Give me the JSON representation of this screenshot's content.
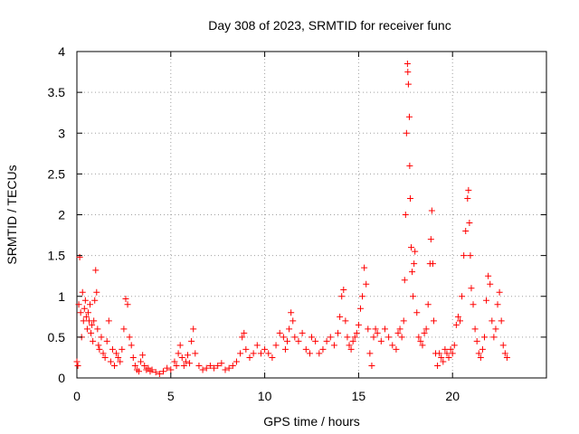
{
  "chart_data": {
    "type": "scatter",
    "title": "Day 308 of 2023, SRMTID for receiver func",
    "xlabel": "GPS time / hours",
    "ylabel": "SRMTID / TECUs",
    "xlim": [
      0,
      25
    ],
    "ylim": [
      0,
      4
    ],
    "xticks": [
      0,
      5,
      10,
      15,
      20
    ],
    "yticks": [
      0,
      0.5,
      1,
      1.5,
      2,
      2.5,
      3,
      3.5,
      4
    ],
    "xtick_labels": [
      "0",
      "5",
      "10",
      "15",
      "20"
    ],
    "ytick_labels": [
      "0",
      "0.5",
      "1",
      "1.5",
      "2",
      "2.5",
      "3",
      "3.5",
      "4"
    ],
    "grid": true,
    "marker": "+",
    "series": [
      {
        "name": "SRMTID",
        "color": "#ff0000",
        "points": [
          [
            0.0,
            0.2
          ],
          [
            0.05,
            0.15
          ],
          [
            0.1,
            0.9
          ],
          [
            0.15,
            1.48
          ],
          [
            0.2,
            0.8
          ],
          [
            0.25,
            0.5
          ],
          [
            0.3,
            1.05
          ],
          [
            0.35,
            0.7
          ],
          [
            0.4,
            0.85
          ],
          [
            0.45,
            0.95
          ],
          [
            0.5,
            0.75
          ],
          [
            0.55,
            0.6
          ],
          [
            0.6,
            0.8
          ],
          [
            0.65,
            0.7
          ],
          [
            0.7,
            0.9
          ],
          [
            0.75,
            0.55
          ],
          [
            0.8,
            0.65
          ],
          [
            0.85,
            0.45
          ],
          [
            0.9,
            0.7
          ],
          [
            0.95,
            0.95
          ],
          [
            1.0,
            1.32
          ],
          [
            1.05,
            1.05
          ],
          [
            1.1,
            0.6
          ],
          [
            1.15,
            0.4
          ],
          [
            1.2,
            0.35
          ],
          [
            1.3,
            0.5
          ],
          [
            1.4,
            0.3
          ],
          [
            1.5,
            0.25
          ],
          [
            1.6,
            0.45
          ],
          [
            1.7,
            0.7
          ],
          [
            1.8,
            0.2
          ],
          [
            1.9,
            0.35
          ],
          [
            2.0,
            0.15
          ],
          [
            2.1,
            0.3
          ],
          [
            2.2,
            0.25
          ],
          [
            2.3,
            0.2
          ],
          [
            2.4,
            0.35
          ],
          [
            2.5,
            0.6
          ],
          [
            2.6,
            0.97
          ],
          [
            2.7,
            0.9
          ],
          [
            2.8,
            0.5
          ],
          [
            2.9,
            0.4
          ],
          [
            3.0,
            0.25
          ],
          [
            3.1,
            0.15
          ],
          [
            3.2,
            0.1
          ],
          [
            3.3,
            0.08
          ],
          [
            3.4,
            0.2
          ],
          [
            3.5,
            0.28
          ],
          [
            3.6,
            0.15
          ],
          [
            3.7,
            0.1
          ],
          [
            3.8,
            0.12
          ],
          [
            3.9,
            0.08
          ],
          [
            4.0,
            0.1
          ],
          [
            4.2,
            0.07
          ],
          [
            4.4,
            0.05
          ],
          [
            4.6,
            0.08
          ],
          [
            4.8,
            0.12
          ],
          [
            5.0,
            0.1
          ],
          [
            5.2,
            0.2
          ],
          [
            5.3,
            0.15
          ],
          [
            5.4,
            0.3
          ],
          [
            5.5,
            0.4
          ],
          [
            5.6,
            0.25
          ],
          [
            5.7,
            0.15
          ],
          [
            5.8,
            0.2
          ],
          [
            5.9,
            0.28
          ],
          [
            6.0,
            0.18
          ],
          [
            6.1,
            0.45
          ],
          [
            6.2,
            0.6
          ],
          [
            6.3,
            0.3
          ],
          [
            6.5,
            0.15
          ],
          [
            6.7,
            0.1
          ],
          [
            6.9,
            0.12
          ],
          [
            7.1,
            0.15
          ],
          [
            7.3,
            0.12
          ],
          [
            7.5,
            0.15
          ],
          [
            7.7,
            0.18
          ],
          [
            7.9,
            0.1
          ],
          [
            8.1,
            0.12
          ],
          [
            8.3,
            0.15
          ],
          [
            8.5,
            0.2
          ],
          [
            8.7,
            0.3
          ],
          [
            8.8,
            0.5
          ],
          [
            8.9,
            0.55
          ],
          [
            9.0,
            0.35
          ],
          [
            9.2,
            0.25
          ],
          [
            9.4,
            0.3
          ],
          [
            9.6,
            0.4
          ],
          [
            9.8,
            0.3
          ],
          [
            10.0,
            0.35
          ],
          [
            10.2,
            0.3
          ],
          [
            10.4,
            0.25
          ],
          [
            10.6,
            0.4
          ],
          [
            10.8,
            0.55
          ],
          [
            11.0,
            0.5
          ],
          [
            11.1,
            0.35
          ],
          [
            11.2,
            0.45
          ],
          [
            11.3,
            0.6
          ],
          [
            11.4,
            0.8
          ],
          [
            11.5,
            0.7
          ],
          [
            11.6,
            0.5
          ],
          [
            11.8,
            0.45
          ],
          [
            12.0,
            0.55
          ],
          [
            12.2,
            0.35
          ],
          [
            12.4,
            0.3
          ],
          [
            12.5,
            0.5
          ],
          [
            12.7,
            0.45
          ],
          [
            12.9,
            0.3
          ],
          [
            13.1,
            0.35
          ],
          [
            13.3,
            0.45
          ],
          [
            13.5,
            0.5
          ],
          [
            13.7,
            0.4
          ],
          [
            13.9,
            0.55
          ],
          [
            14.0,
            0.75
          ],
          [
            14.1,
            1.0
          ],
          [
            14.2,
            1.08
          ],
          [
            14.3,
            0.7
          ],
          [
            14.4,
            0.5
          ],
          [
            14.5,
            0.4
          ],
          [
            14.6,
            0.35
          ],
          [
            14.7,
            0.45
          ],
          [
            14.8,
            0.5
          ],
          [
            14.9,
            0.55
          ],
          [
            15.0,
            0.65
          ],
          [
            15.1,
            0.85
          ],
          [
            15.2,
            1.0
          ],
          [
            15.3,
            1.35
          ],
          [
            15.4,
            1.15
          ],
          [
            15.5,
            0.6
          ],
          [
            15.6,
            0.3
          ],
          [
            15.7,
            0.15
          ],
          [
            15.8,
            0.5
          ],
          [
            15.9,
            0.6
          ],
          [
            16.0,
            0.55
          ],
          [
            16.2,
            0.45
          ],
          [
            16.4,
            0.6
          ],
          [
            16.6,
            0.5
          ],
          [
            16.8,
            0.4
          ],
          [
            17.0,
            0.35
          ],
          [
            17.1,
            0.55
          ],
          [
            17.2,
            0.6
          ],
          [
            17.3,
            0.5
          ],
          [
            17.4,
            0.7
          ],
          [
            17.45,
            1.2
          ],
          [
            17.5,
            2.0
          ],
          [
            17.55,
            3.0
          ],
          [
            17.6,
            3.85
          ],
          [
            17.62,
            3.75
          ],
          [
            17.65,
            3.6
          ],
          [
            17.7,
            3.2
          ],
          [
            17.72,
            2.6
          ],
          [
            17.75,
            2.2
          ],
          [
            17.8,
            1.6
          ],
          [
            17.85,
            1.3
          ],
          [
            17.9,
            1.0
          ],
          [
            17.95,
            1.4
          ],
          [
            18.0,
            1.55
          ],
          [
            18.1,
            0.8
          ],
          [
            18.2,
            0.5
          ],
          [
            18.3,
            0.45
          ],
          [
            18.4,
            0.4
          ],
          [
            18.5,
            0.55
          ],
          [
            18.6,
            0.6
          ],
          [
            18.7,
            0.9
          ],
          [
            18.8,
            1.4
          ],
          [
            18.85,
            1.7
          ],
          [
            18.9,
            2.05
          ],
          [
            18.95,
            1.4
          ],
          [
            19.0,
            0.7
          ],
          [
            19.1,
            0.3
          ],
          [
            19.2,
            0.15
          ],
          [
            19.3,
            0.3
          ],
          [
            19.4,
            0.25
          ],
          [
            19.5,
            0.2
          ],
          [
            19.6,
            0.35
          ],
          [
            19.7,
            0.3
          ],
          [
            19.8,
            0.25
          ],
          [
            19.9,
            0.35
          ],
          [
            20.0,
            0.3
          ],
          [
            20.1,
            0.4
          ],
          [
            20.2,
            0.65
          ],
          [
            20.3,
            0.75
          ],
          [
            20.4,
            0.7
          ],
          [
            20.5,
            1.0
          ],
          [
            20.6,
            1.5
          ],
          [
            20.7,
            1.8
          ],
          [
            20.8,
            2.2
          ],
          [
            20.85,
            2.3
          ],
          [
            20.9,
            1.9
          ],
          [
            20.95,
            1.5
          ],
          [
            21.0,
            1.1
          ],
          [
            21.1,
            0.9
          ],
          [
            21.2,
            0.6
          ],
          [
            21.3,
            0.45
          ],
          [
            21.4,
            0.3
          ],
          [
            21.5,
            0.25
          ],
          [
            21.6,
            0.35
          ],
          [
            21.7,
            0.5
          ],
          [
            21.8,
            0.95
          ],
          [
            21.9,
            1.25
          ],
          [
            22.0,
            1.15
          ],
          [
            22.1,
            0.7
          ],
          [
            22.2,
            0.5
          ],
          [
            22.3,
            0.6
          ],
          [
            22.4,
            0.9
          ],
          [
            22.5,
            1.05
          ],
          [
            22.6,
            0.7
          ],
          [
            22.7,
            0.4
          ],
          [
            22.8,
            0.3
          ],
          [
            22.9,
            0.25
          ]
        ]
      }
    ]
  }
}
